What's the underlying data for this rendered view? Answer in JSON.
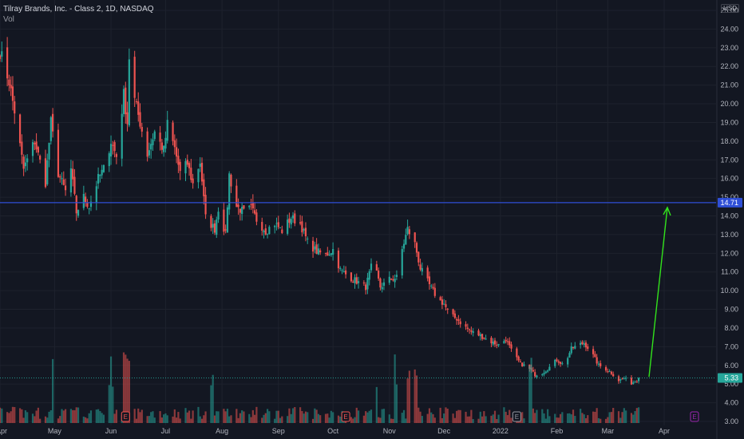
{
  "header": {
    "title": "Tilray Brands, Inc. - Class 2, 1D, NASDAQ",
    "sub": "Vol"
  },
  "axis": {
    "currency": "USD"
  },
  "colors": {
    "background": "#131722",
    "grid": "#1e222d",
    "up": "#26a69a",
    "down": "#ef5350",
    "hline": "#2f4fd6",
    "arrow": "#32e31c",
    "price_label": "#26a69a",
    "event_marker": "#ef5350",
    "event_marker_future": "#9c27b0",
    "text": "#b2b5be"
  },
  "chart_data": {
    "type": "candlestick",
    "title": "Tilray Brands, Inc. - Class 2, 1D, NASDAQ",
    "ylim": [
      2.8,
      25.4
    ],
    "y_ticks": [
      "3.00",
      "4.00",
      "5.00",
      "6.00",
      "7.00",
      "8.00",
      "9.00",
      "10.00",
      "11.00",
      "12.00",
      "13.00",
      "14.00",
      "15.00",
      "16.00",
      "17.00",
      "18.00",
      "19.00",
      "20.00",
      "21.00",
      "22.00",
      "23.00",
      "24.00",
      "25.00"
    ],
    "x_ticks": [
      "Apr",
      "May",
      "Jun",
      "Jul",
      "Aug",
      "Sep",
      "Oct",
      "Nov",
      "Dec",
      "2022",
      "Feb",
      "Mar",
      "Apr"
    ],
    "x_tick_first_label": "Apr",
    "grid": true,
    "price_path": [
      [
        "Apr 1",
        22.8
      ],
      [
        "Apr 6",
        21.2
      ],
      [
        "Apr 9",
        19.6
      ],
      [
        "Apr 14",
        16.5
      ],
      [
        "Apr 20",
        18.0
      ],
      [
        "Apr 26",
        15.8
      ],
      [
        "Apr 29",
        19.0
      ],
      [
        "May 3",
        16.3
      ],
      [
        "May 7",
        15.3
      ],
      [
        "May 10",
        16.5
      ],
      [
        "May 13",
        14.2
      ],
      [
        "May 17",
        15.0
      ],
      [
        "May 20",
        14.5
      ],
      [
        "May 25",
        16.0
      ],
      [
        "May 28",
        16.5
      ],
      [
        "Jun 1",
        18.0
      ],
      [
        "Jun 4",
        17.2
      ],
      [
        "Jun 8",
        20.5
      ],
      [
        "Jun 10",
        19.0
      ],
      [
        "Jun 11",
        22.5
      ],
      [
        "Jun 14",
        20.2
      ],
      [
        "Jun 17",
        19.0
      ],
      [
        "Jun 21",
        17.3
      ],
      [
        "Jun 25",
        18.5
      ],
      [
        "Jun 30",
        17.5
      ],
      [
        "Jul 2",
        18.9
      ],
      [
        "Jul 6",
        17.6
      ],
      [
        "Jul 9",
        16.3
      ],
      [
        "Jul 13",
        16.8
      ],
      [
        "Jul 16",
        15.7
      ],
      [
        "Jul 20",
        16.9
      ],
      [
        "Jul 23",
        13.9
      ],
      [
        "Jul 28",
        13.3
      ],
      [
        "Jul 30",
        14.4
      ],
      [
        "Aug 3",
        13.0
      ],
      [
        "Aug 5",
        16.2
      ],
      [
        "Aug 9",
        14.5
      ],
      [
        "Aug 13",
        14.2
      ],
      [
        "Aug 17",
        14.4
      ],
      [
        "Aug 20",
        13.8
      ],
      [
        "Aug 25",
        13.2
      ],
      [
        "Aug 30",
        13.6
      ],
      [
        "Sep 3",
        13.2
      ],
      [
        "Sep 8",
        13.9
      ],
      [
        "Sep 13",
        13.6
      ],
      [
        "Sep 17",
        12.6
      ],
      [
        "Sep 22",
        12.1
      ],
      [
        "Sep 27",
        11.9
      ],
      [
        "Oct 1",
        12.2
      ],
      [
        "Oct 5",
        11.1
      ],
      [
        "Oct 9",
        10.8
      ],
      [
        "Oct 14",
        10.5
      ],
      [
        "Oct 19",
        10.2
      ],
      [
        "Oct 23",
        11.6
      ],
      [
        "Oct 27",
        10.2
      ],
      [
        "Nov 1",
        10.6
      ],
      [
        "Nov 5",
        10.7
      ],
      [
        "Nov 8",
        12.2
      ],
      [
        "Nov 11",
        13.3
      ],
      [
        "Nov 15",
        12.5
      ],
      [
        "Nov 18",
        11.2
      ],
      [
        "Nov 23",
        10.3
      ],
      [
        "Nov 28",
        9.5
      ],
      [
        "Dec 1",
        9.3
      ],
      [
        "Dec 4",
        8.7
      ],
      [
        "Dec 8",
        8.5
      ],
      [
        "Dec 12",
        8.1
      ],
      [
        "Dec 16",
        7.8
      ],
      [
        "Dec 21",
        7.6
      ],
      [
        "Dec 26",
        7.3
      ],
      [
        "Dec 31",
        7.1
      ],
      [
        "Jan 4",
        7.4
      ],
      [
        "Jan 8",
        6.6
      ],
      [
        "Jan 12",
        6.1
      ],
      [
        "Jan 16",
        5.9
      ],
      [
        "Jan 20",
        5.5
      ],
      [
        "Jan 24",
        5.6
      ],
      [
        "Jan 28",
        5.9
      ],
      [
        "Feb 1",
        6.3
      ],
      [
        "Feb 5",
        6.0
      ],
      [
        "Feb 9",
        6.9
      ],
      [
        "Feb 13",
        7.1
      ],
      [
        "Feb 16",
        7.2
      ],
      [
        "Feb 20",
        6.7
      ],
      [
        "Feb 24",
        6.0
      ],
      [
        "Feb 28",
        5.8
      ],
      [
        "Mar 3",
        5.6
      ],
      [
        "Mar 7",
        5.2
      ],
      [
        "Mar 10",
        5.3
      ],
      [
        "Mar 14",
        5.05
      ],
      [
        "Mar 17",
        5.2
      ],
      [
        "Mar 18",
        5.33
      ]
    ],
    "last_price": 5.33,
    "last_price_label": "5.33",
    "horizontal_line": {
      "value": 14.71,
      "label": "14.71"
    },
    "arrow": {
      "from_value": 5.3,
      "to_value": 14.71
    },
    "volume": {
      "series_name": "Vol",
      "spikes": [
        [
          "May 1",
          "up"
        ],
        [
          "Jun 1",
          "up"
        ],
        [
          "Jun 9",
          "down"
        ],
        [
          "Jun 12",
          "down"
        ],
        [
          "Jul 26",
          "up"
        ],
        [
          "Oct 24",
          "up"
        ],
        [
          "Nov 5",
          "up"
        ],
        [
          "Nov 12",
          "down"
        ],
        [
          "Nov 15",
          "down"
        ],
        [
          "Jan 17",
          "up"
        ]
      ]
    },
    "events": [
      {
        "date": "Jun 9",
        "label": "E",
        "kind": "earnings"
      },
      {
        "date": "Oct 8",
        "label": "E",
        "kind": "earnings"
      },
      {
        "date": "Jan 10",
        "label": "E",
        "kind": "earnings"
      },
      {
        "date": "Apr 7",
        "label": "E",
        "kind": "earnings-upcoming"
      }
    ]
  }
}
